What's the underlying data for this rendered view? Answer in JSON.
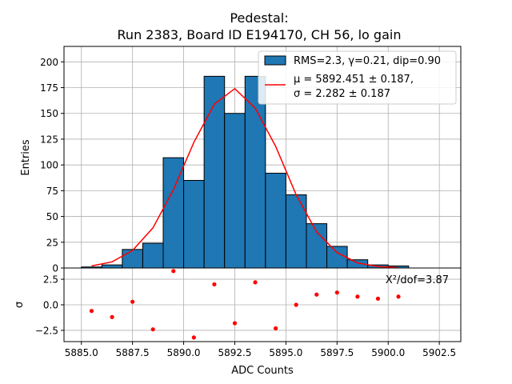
{
  "chart_data": [
    {
      "type": "bar",
      "title": "Pedestal:",
      "subtitle": "Run 2383, Board ID E194170, CH 56, lo gain",
      "xlabel": "",
      "ylabel": "Entries",
      "xlim": [
        5884.15,
        5903.55
      ],
      "ylim": [
        0,
        215
      ],
      "grid": true,
      "legend_position": "top-right",
      "yticks": [
        0,
        25,
        50,
        75,
        100,
        125,
        150,
        175,
        200
      ],
      "bins": {
        "left_edges": [
          5885,
          5886,
          5887,
          5888,
          5889,
          5890,
          5891,
          5892,
          5893,
          5894,
          5895,
          5896,
          5897,
          5898,
          5899,
          5900
        ],
        "width": 1,
        "counts": [
          1,
          3,
          18,
          24,
          107,
          85,
          186,
          150,
          186,
          92,
          71,
          43,
          21,
          8,
          3,
          2
        ],
        "color": "#1f77b4",
        "label": "RMS=2.3, γ=0.21, dip=0.90"
      },
      "fit": {
        "color": "#ff0000",
        "label_line1": "μ = 5892.451 ± 0.187,",
        "label_line2": "σ = 2.282 ± 0.187",
        "x": [
          5885.5,
          5886.5,
          5887.5,
          5888.5,
          5889.5,
          5890.5,
          5891.5,
          5892.5,
          5893.5,
          5894.5,
          5895.5,
          5896.5,
          5897.5,
          5898.5,
          5899.5,
          5900.5
        ],
        "y": [
          2,
          6,
          17,
          39,
          76,
          122,
          159,
          174,
          155,
          118,
          71,
          35,
          15,
          5,
          1.5,
          0.4
        ]
      }
    },
    {
      "type": "scatter",
      "xlabel": "ADC Counts",
      "ylabel": "σ",
      "xlim": [
        5884.15,
        5903.55
      ],
      "ylim": [
        -3.6,
        3.6
      ],
      "grid": true,
      "xticks": [
        5885.0,
        5887.5,
        5890.0,
        5892.5,
        5895.0,
        5897.5,
        5900.0,
        5902.5
      ],
      "xtick_labels": [
        "5885.0",
        "5887.5",
        "5890.0",
        "5892.5",
        "5895.0",
        "5897.5",
        "5900.0",
        "5902.5"
      ],
      "yticks": [
        2.5,
        0.0,
        -2.5
      ],
      "ytick_labels": [
        "2.5",
        "0.0",
        "−2.5"
      ],
      "annotation": "X²/dof=3.87",
      "color": "#ff0000",
      "x": [
        5885.5,
        5886.5,
        5887.5,
        5888.5,
        5889.5,
        5890.5,
        5891.5,
        5892.5,
        5893.5,
        5894.5,
        5895.5,
        5896.5,
        5897.5,
        5898.5,
        5899.5,
        5900.5
      ],
      "y": [
        -0.6,
        -1.2,
        0.3,
        -2.4,
        3.3,
        -3.2,
        2.0,
        -1.8,
        2.2,
        -2.3,
        0.0,
        1.0,
        1.2,
        0.8,
        0.6,
        0.8
      ]
    }
  ]
}
